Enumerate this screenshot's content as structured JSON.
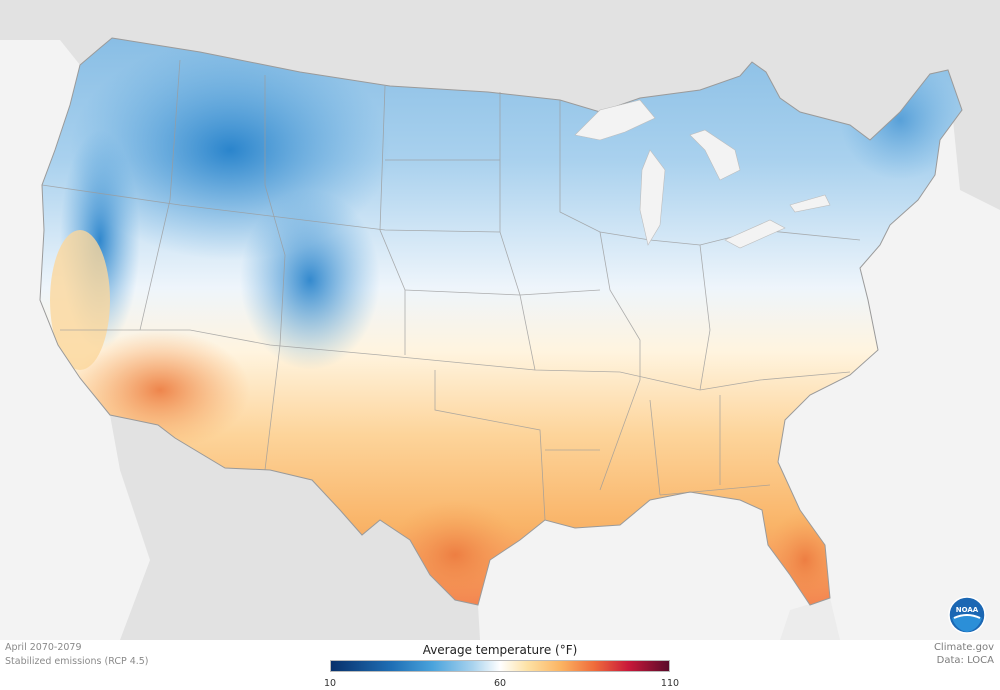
{
  "map": {
    "region": "Contiguous United States",
    "variable": "Average temperature",
    "description_period": "April 2070-2079",
    "scenario": "Stabilized emissions (RCP 4.5)"
  },
  "caption": {
    "period": "April 2070-2079",
    "scenario": "Stabilized emissions (RCP 4.5)"
  },
  "legend": {
    "title": "Average temperature (°F)",
    "ticks": [
      "10",
      "60",
      "110"
    ],
    "min": 10,
    "mid": 60,
    "max": 110
  },
  "credits": {
    "source": "Climate.gov",
    "data": "Data: LOCA"
  },
  "logo": {
    "text": "NOAA"
  },
  "colors": {
    "cold": "#1f78c1",
    "neutral": "#ffffff",
    "warm": "#fbb462",
    "hot": "#ef6b3b",
    "land_outside": "#e0e0e0",
    "water": "#f3f3f3"
  }
}
